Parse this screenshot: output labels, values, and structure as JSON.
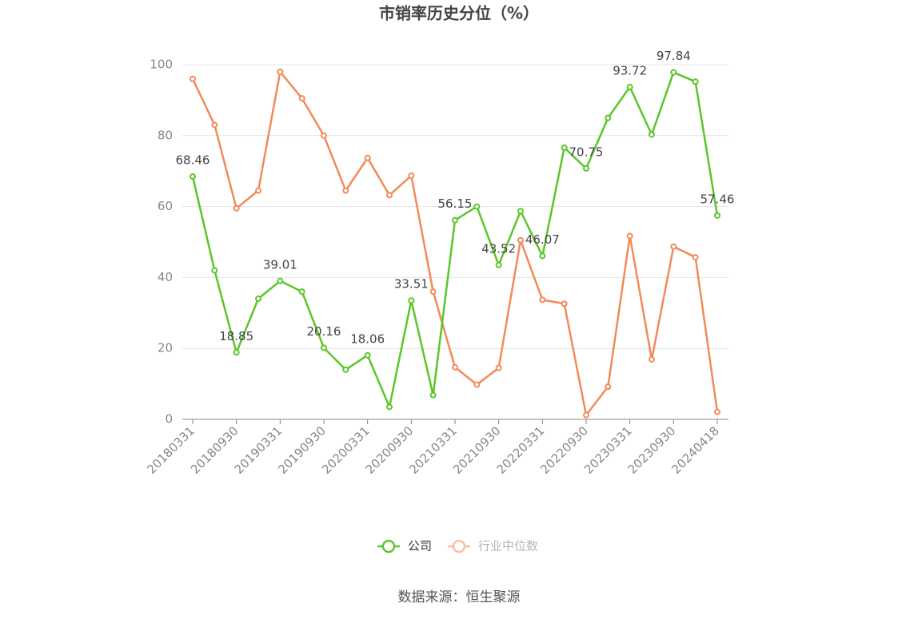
{
  "chart_data": {
    "type": "line",
    "title": "市销率历史分位（%）",
    "categories": [
      "20180331",
      null,
      "20180930",
      null,
      "20190331",
      null,
      "20190930",
      null,
      "20200331",
      null,
      "20200930",
      null,
      "20210331",
      null,
      "20210930",
      null,
      "20220331",
      null,
      "20220930",
      null,
      "20230331",
      null,
      "20230930",
      null,
      "20240418"
    ],
    "series": [
      {
        "name": "公司",
        "color": "#5ac629",
        "values": [
          68.46,
          42,
          18.85,
          34,
          39.01,
          36,
          20.16,
          14,
          18.06,
          3.5,
          33.51,
          6.8,
          56.15,
          60,
          43.52,
          58.7,
          46.07,
          76.6,
          70.75,
          85,
          93.72,
          80.3,
          97.84,
          95.2,
          57.46
        ]
      },
      {
        "name": "行业中位数",
        "color": "#f28a5a",
        "values": [
          96,
          83,
          59.5,
          64.5,
          98,
          90.5,
          80,
          64.5,
          73.7,
          63.2,
          68.7,
          36,
          14.7,
          9.8,
          14.5,
          50.5,
          33.7,
          32.6,
          1.2,
          9.2,
          51.7,
          16.9,
          48.7,
          45.7,
          2.1
        ]
      }
    ],
    "ylim": [
      0,
      100
    ],
    "yticks": [
      0,
      20,
      40,
      60,
      80,
      100
    ],
    "grid": true,
    "source": "数据来源：恒生聚源"
  }
}
